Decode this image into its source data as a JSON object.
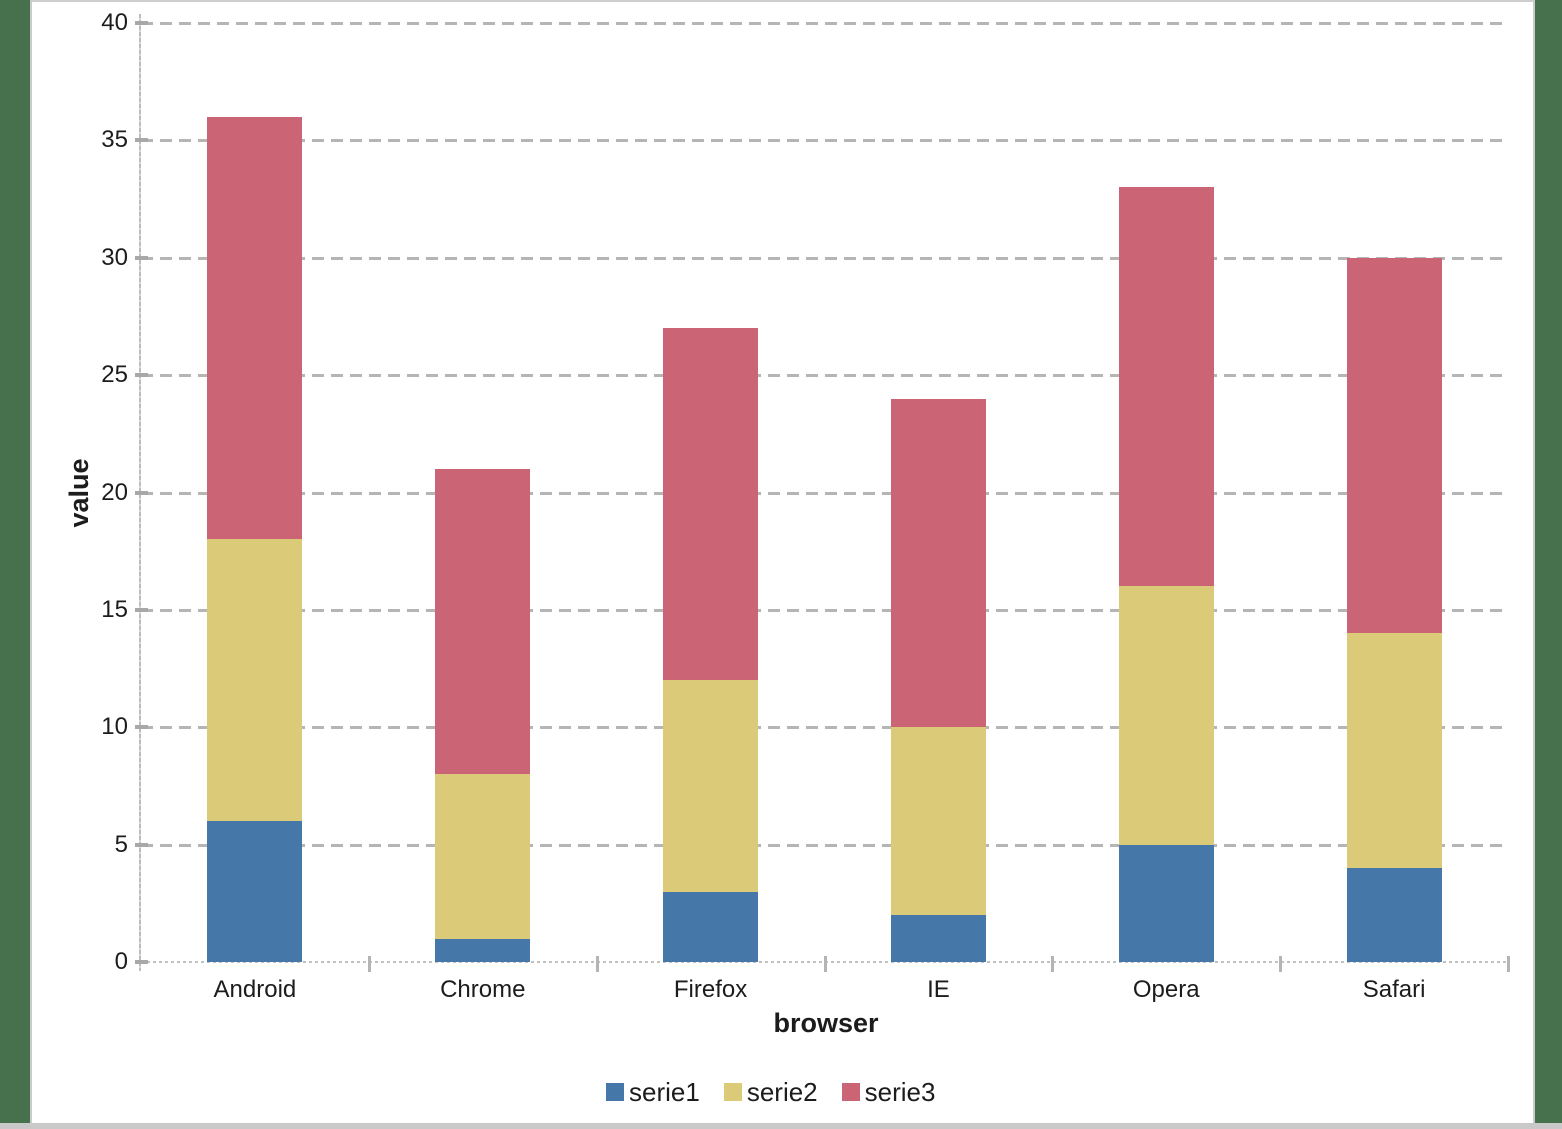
{
  "frame": {
    "side_border_color": "#47704c",
    "edge_line_color": "#cbcbcb",
    "bottom_band_color": "#c9c9c9",
    "background": "#ffffff"
  },
  "chart_data": {
    "type": "bar",
    "stacked": true,
    "title": "",
    "xlabel": "browser",
    "ylabel": "value",
    "categories": [
      "Android",
      "Chrome",
      "Firefox",
      "IE",
      "Opera",
      "Safari"
    ],
    "series": [
      {
        "name": "serie1",
        "color": "#4577a9",
        "values": [
          6,
          1,
          3,
          2,
          5,
          4
        ]
      },
      {
        "name": "serie2",
        "color": "#dbcb79",
        "values": [
          12,
          7,
          9,
          8,
          11,
          10
        ]
      },
      {
        "name": "serie3",
        "color": "#cb6576",
        "values": [
          18,
          13,
          15,
          14,
          17,
          16
        ]
      }
    ],
    "totals": [
      36,
      21,
      27,
      24,
      33,
      30
    ],
    "ylim": [
      0,
      40
    ],
    "ytick_step": 5,
    "yticks": [
      "0",
      "5",
      "10",
      "15",
      "20",
      "25",
      "30",
      "35",
      "40"
    ],
    "grid": true,
    "gridline_color": "#b5b5b5",
    "legend_position": "bottom",
    "text_color": "#1c1c1c"
  }
}
